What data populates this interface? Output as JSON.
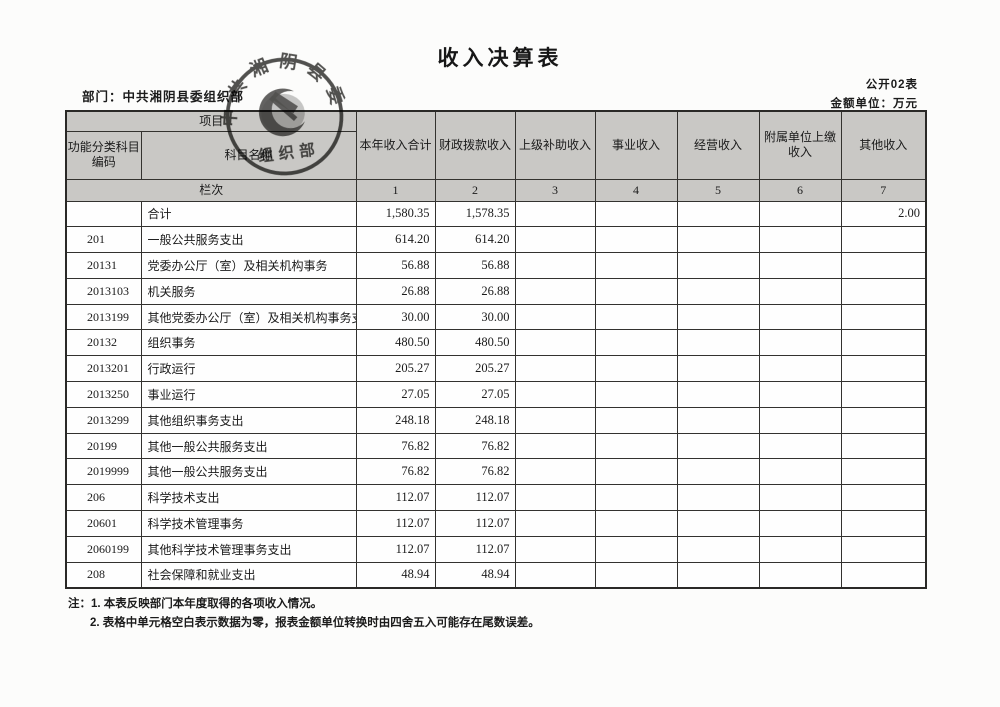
{
  "page": {
    "title": "收入决算表",
    "form_code": "公开02表",
    "unit_label": "金额单位：万元",
    "department_label": "部门：中共湘阴县委组织部"
  },
  "seal": {
    "ring_text": "中共湘阴县委",
    "bottom_text": "组织部",
    "emblem": "hammer-sickle-icon",
    "ink_color": "#2c2b29"
  },
  "table": {
    "header": {
      "project_label": "项目",
      "code_label": "功能分类科目编码",
      "subject_label": "科目名称",
      "row_label": "栏次",
      "income_columns": [
        "本年收入合计",
        "财政拨款收入",
        "上级补助收入",
        "事业收入",
        "经营收入",
        "附属单位上缴收入",
        "其他收入"
      ],
      "column_numbers": [
        "1",
        "2",
        "3",
        "4",
        "5",
        "6",
        "7"
      ]
    },
    "rows": [
      {
        "code": "",
        "name": "合计",
        "values": [
          "1,580.35",
          "1,578.35",
          "",
          "",
          "",
          "",
          "2.00"
        ]
      },
      {
        "code": "201",
        "name": "一般公共服务支出",
        "values": [
          "614.20",
          "614.20",
          "",
          "",
          "",
          "",
          ""
        ]
      },
      {
        "code": "20131",
        "name": "党委办公厅（室）及相关机构事务",
        "values": [
          "56.88",
          "56.88",
          "",
          "",
          "",
          "",
          ""
        ]
      },
      {
        "code": "2013103",
        "name": "机关服务",
        "values": [
          "26.88",
          "26.88",
          "",
          "",
          "",
          "",
          ""
        ]
      },
      {
        "code": "2013199",
        "name": "其他党委办公厅（室）及相关机构事务支",
        "values": [
          "30.00",
          "30.00",
          "",
          "",
          "",
          "",
          ""
        ]
      },
      {
        "code": "20132",
        "name": "组织事务",
        "values": [
          "480.50",
          "480.50",
          "",
          "",
          "",
          "",
          ""
        ]
      },
      {
        "code": "2013201",
        "name": "行政运行",
        "values": [
          "205.27",
          "205.27",
          "",
          "",
          "",
          "",
          ""
        ]
      },
      {
        "code": "2013250",
        "name": "事业运行",
        "values": [
          "27.05",
          "27.05",
          "",
          "",
          "",
          "",
          ""
        ]
      },
      {
        "code": "2013299",
        "name": "其他组织事务支出",
        "values": [
          "248.18",
          "248.18",
          "",
          "",
          "",
          "",
          ""
        ]
      },
      {
        "code": "20199",
        "name": "其他一般公共服务支出",
        "values": [
          "76.82",
          "76.82",
          "",
          "",
          "",
          "",
          ""
        ]
      },
      {
        "code": "2019999",
        "name": "其他一般公共服务支出",
        "values": [
          "76.82",
          "76.82",
          "",
          "",
          "",
          "",
          ""
        ]
      },
      {
        "code": "206",
        "name": "科学技术支出",
        "values": [
          "112.07",
          "112.07",
          "",
          "",
          "",
          "",
          ""
        ]
      },
      {
        "code": "20601",
        "name": "科学技术管理事务",
        "values": [
          "112.07",
          "112.07",
          "",
          "",
          "",
          "",
          ""
        ]
      },
      {
        "code": "2060199",
        "name": "其他科学技术管理事务支出",
        "values": [
          "112.07",
          "112.07",
          "",
          "",
          "",
          "",
          ""
        ]
      },
      {
        "code": "208",
        "name": "社会保障和就业支出",
        "values": [
          "48.94",
          "48.94",
          "",
          "",
          "",
          "",
          ""
        ]
      }
    ]
  },
  "notes": {
    "line1": "注：1. 本表反映部门本年度取得的各项收入情况。",
    "line2": "2. 表格中单元格空白表示数据为零，报表金额单位转换时由四舍五入可能存在尾数误差。"
  }
}
